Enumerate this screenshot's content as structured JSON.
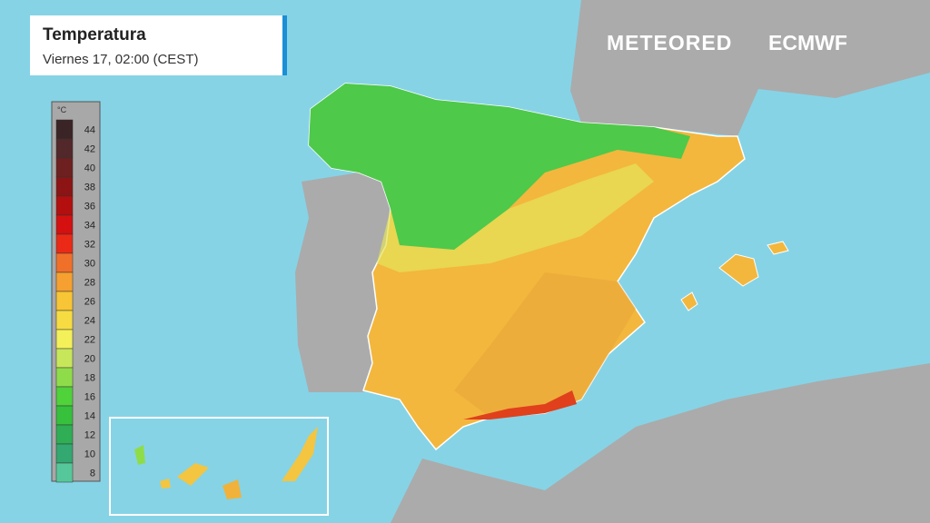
{
  "header": {
    "title": "Temperatura",
    "subtitle": "Viernes 17, 02:00 (CEST)"
  },
  "logos": [
    "METEORED",
    "ECMWF"
  ],
  "legend": {
    "unit": "°C",
    "ticks": [
      44,
      42,
      40,
      38,
      36,
      34,
      32,
      30,
      28,
      26,
      24,
      22,
      20,
      18,
      16,
      14,
      12,
      10,
      8
    ],
    "colors": [
      "#3a2426",
      "#52282a",
      "#6e1f1f",
      "#8c1414",
      "#b30f0f",
      "#d41010",
      "#ea2a16",
      "#f0702a",
      "#f5a030",
      "#f7c535",
      "#f6dc42",
      "#f4f05a",
      "#c7e65a",
      "#8fdc4a",
      "#4fd23a",
      "#36c03c",
      "#2fae55",
      "#33a870",
      "#56c79a"
    ]
  }
}
